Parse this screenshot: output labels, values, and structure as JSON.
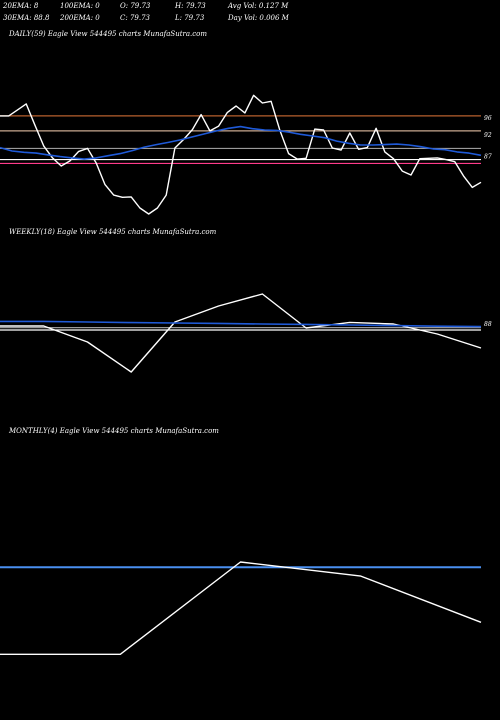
{
  "header": {
    "row1": [
      "20EMA: 8",
      "100EMA: 0",
      "O: 79.73",
      "H: 79.73",
      "Avg Vol: 0.127 M"
    ],
    "row2": [
      "30EMA: 88.8",
      "200EMA: 0",
      "C: 79.73",
      "L: 79.73",
      "Day Vol: 0.006  M"
    ]
  },
  "chart_data": [
    {
      "type": "line",
      "title": "DAILY(59) Eagle   View  544495 charts MunafaSutra.com",
      "ylim": [
        75,
        103
      ],
      "yticks": [
        "96",
        "92",
        "87"
      ],
      "hlines": [
        {
          "value": 96.5,
          "color": "#b8612e"
        },
        {
          "value": 93.0,
          "color": "#c9a98f"
        },
        {
          "value": 88.9,
          "color": "#9a9a9a"
        },
        {
          "value": 86.3,
          "color": "#ffffff"
        },
        {
          "value": 85.4,
          "color": "#ff3c8c"
        }
      ],
      "series": [
        {
          "color": "#ffffff",
          "values": [
            96.5,
            96.5,
            97.9,
            99.3,
            94.3,
            89.5,
            86.7,
            84.8,
            86.0,
            88.2,
            88.9,
            85.5,
            80.5,
            78.0,
            77.5,
            77.6,
            75.0,
            73.6,
            75.0,
            78.0,
            89.0,
            91.0,
            93.3,
            96.8,
            93.0,
            94.1,
            97.3,
            98.8,
            97.2,
            101.3,
            99.5,
            99.9,
            93.1,
            87.7,
            86.4,
            86.6,
            93.4,
            93.2,
            89.0,
            88.5,
            92.5,
            88.7,
            89.1,
            93.6,
            88.1,
            86.5,
            83.6,
            82.7,
            86.5,
            86.6,
            86.7,
            86.3,
            85.8,
            82.5,
            79.8,
            81.0
          ]
        },
        {
          "color": "#1f5ad8",
          "values": [
            89.1,
            88.3,
            88.0,
            87.8,
            87.4,
            87.0,
            86.7,
            86.4,
            86.7,
            87.2,
            87.7,
            88.4,
            89.2,
            89.8,
            90.3,
            90.9,
            91.6,
            92.3,
            93.0,
            93.6,
            94.0,
            93.5,
            93.2,
            93.1,
            92.7,
            92.2,
            91.8,
            91.4,
            90.6,
            90.1,
            89.7,
            89.7,
            89.8,
            89.9,
            89.7,
            89.3,
            88.8,
            88.6,
            88.1,
            87.8,
            87.3
          ]
        }
      ]
    },
    {
      "type": "line",
      "title": "WEEKLY(18) Eagle   View  544495 charts MunafaSutra.com",
      "ylim": [
        60,
        104
      ],
      "yticks": [
        "88"
      ],
      "hlines": [
        {
          "value": 86.2,
          "color": "#9a9a9a"
        },
        {
          "value": 85.0,
          "color": "#ffffff"
        }
      ],
      "series": [
        {
          "color": "#ffffff",
          "values": [
            87.0,
            87.0,
            79.0,
            64.0,
            89.0,
            97.0,
            103.0,
            86.0,
            88.8,
            88.0,
            83.0,
            76.0
          ]
        },
        {
          "color": "#1f5ad8",
          "values": [
            89.3,
            89.3,
            89.0,
            88.7,
            88.5,
            88.3,
            88.0,
            87.8,
            87.5,
            87.2,
            86.9,
            86.7
          ]
        }
      ]
    },
    {
      "type": "line",
      "title": "MONTHLY(4) Eagle   View  544495 charts MunafaSutra.com",
      "ylim": [
        70,
        110
      ],
      "yticks": [],
      "hlines": [
        {
          "value": 99.5,
          "color": "#4a8ff0"
        }
      ],
      "series": [
        {
          "color": "#ffffff",
          "values": [
            75.0,
            75.0,
            101.0,
            97.0,
            84.0
          ]
        }
      ]
    }
  ]
}
